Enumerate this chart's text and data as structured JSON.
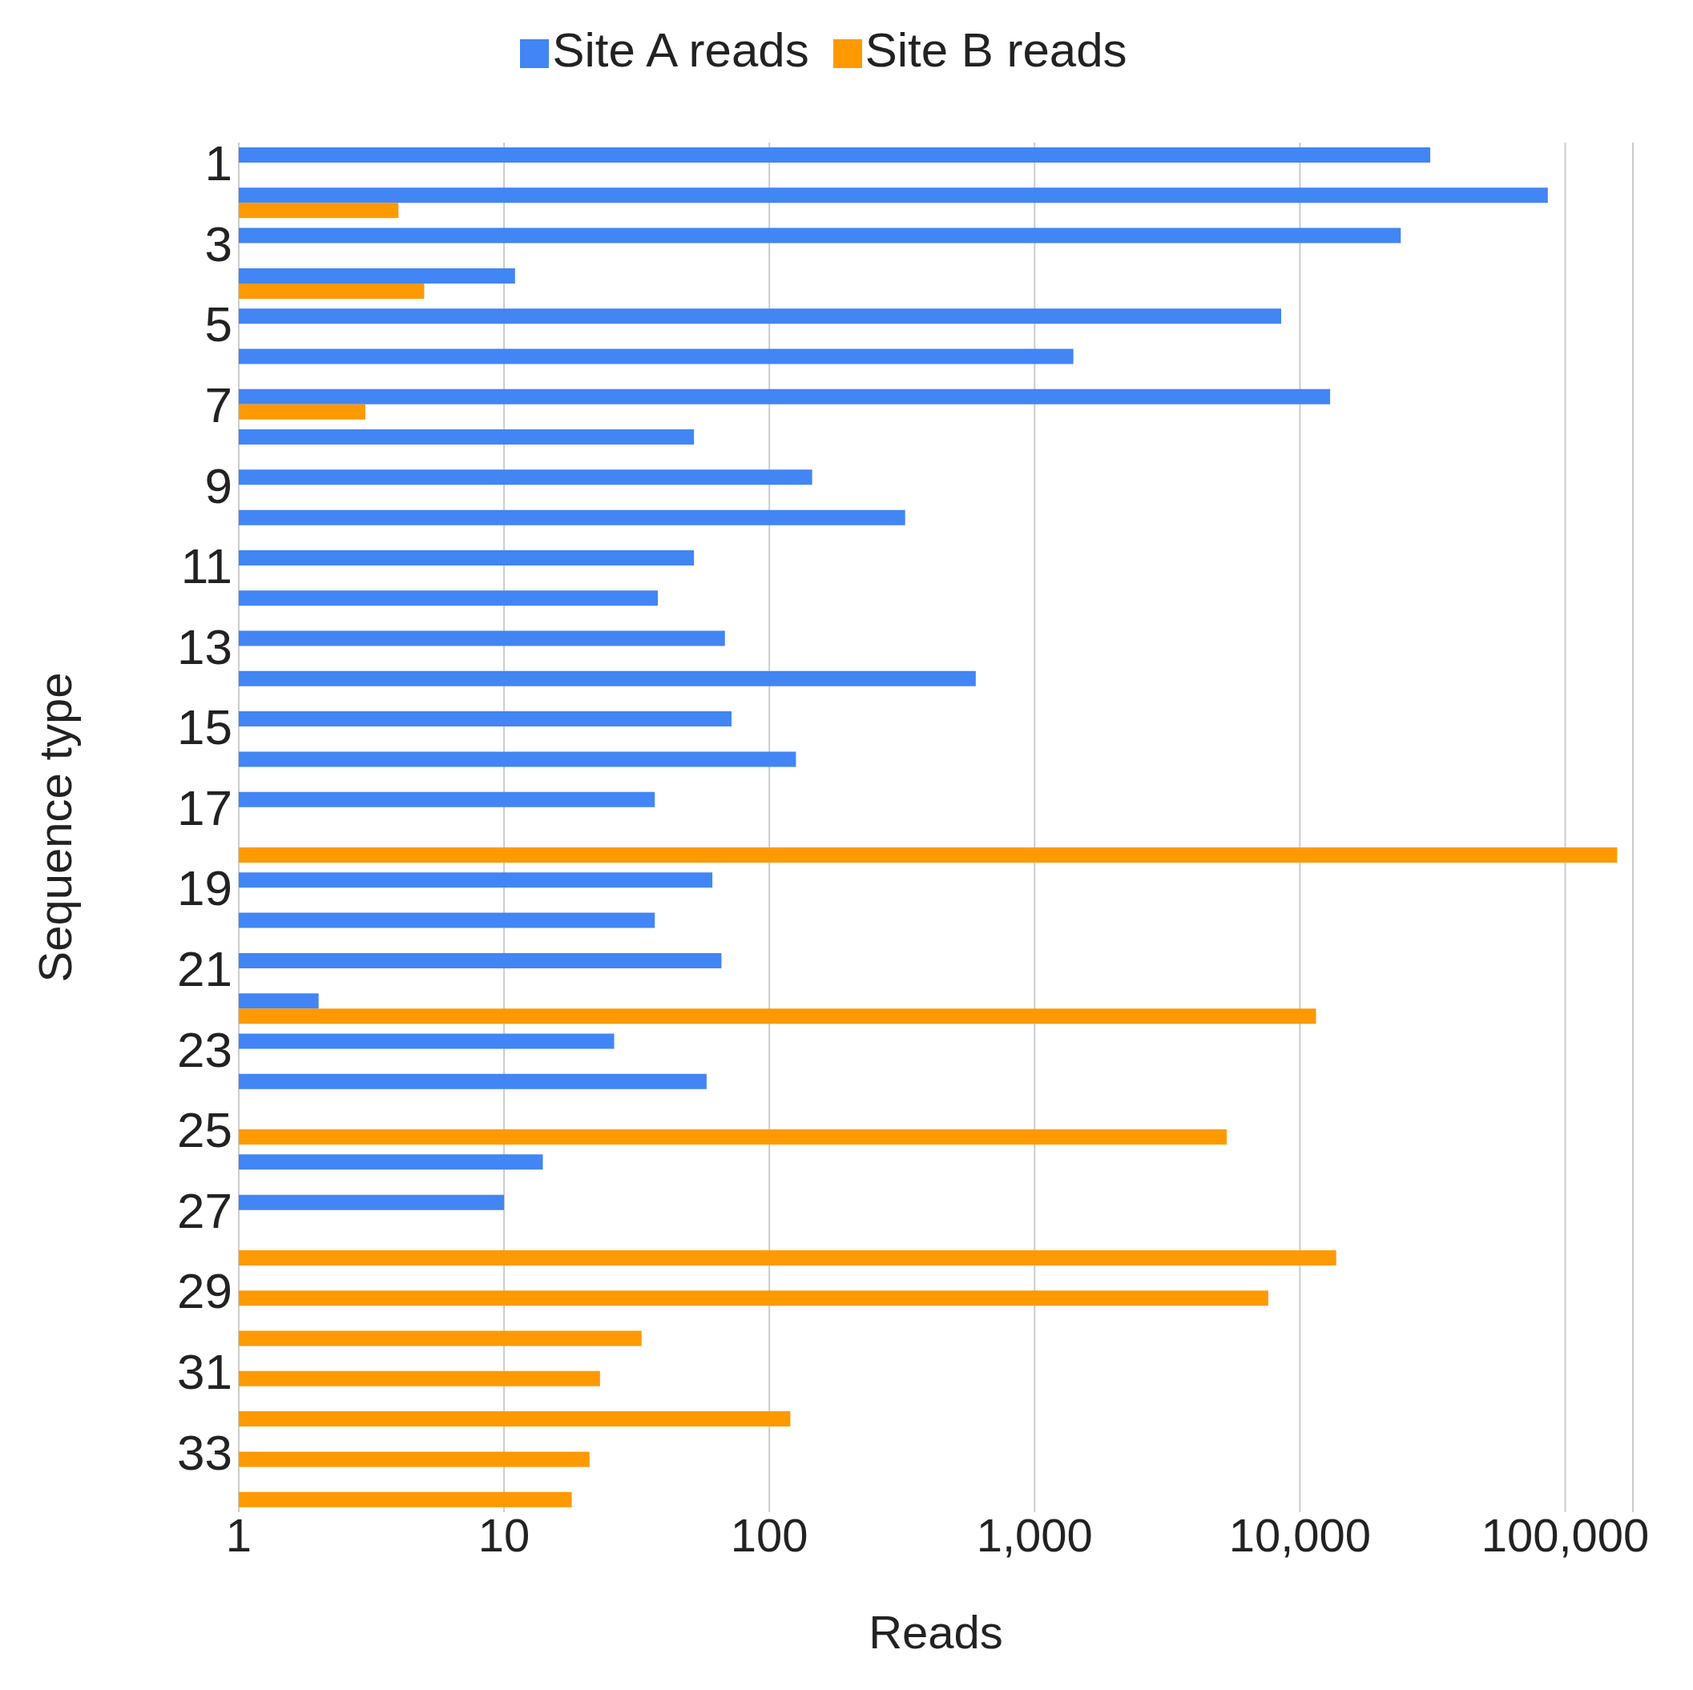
{
  "chart_data": {
    "type": "bar",
    "orientation": "horizontal",
    "xlabel": "Reads",
    "ylabel": "Sequence type",
    "categories": [
      "1",
      null,
      "3",
      null,
      "5",
      null,
      "7",
      null,
      "9",
      null,
      "11",
      null,
      "13",
      null,
      "15",
      null,
      "17",
      null,
      "19",
      null,
      "21",
      null,
      "23",
      null,
      "25",
      null,
      "27",
      null,
      "29",
      null,
      "31",
      null,
      "33",
      null
    ],
    "series": [
      {
        "name": "Site A reads",
        "color": "#4285f4",
        "values": [
          31000,
          86000,
          24000,
          11,
          8500,
          1400,
          13000,
          52,
          145,
          325,
          52,
          38,
          68,
          600,
          72,
          126,
          37,
          null,
          61,
          37,
          66,
          2,
          26,
          58,
          null,
          14,
          10,
          null,
          null,
          null,
          null,
          null,
          null,
          null
        ]
      },
      {
        "name": "Site B reads",
        "color": "#ff9900",
        "values": [
          null,
          4,
          null,
          5,
          null,
          null,
          3,
          null,
          null,
          null,
          null,
          null,
          null,
          null,
          null,
          null,
          null,
          157000,
          null,
          null,
          null,
          11500,
          null,
          null,
          5300,
          null,
          null,
          13700,
          7600,
          33,
          23,
          120,
          21,
          18
        ]
      }
    ],
    "log": "x",
    "xlim": [
      1,
      180000
    ],
    "xticks": [
      1,
      10,
      100,
      {
        "value": 1000,
        "label": "1,000"
      },
      {
        "value": 10000,
        "label": "10,000"
      },
      {
        "value": 100000,
        "label": "100,000"
      }
    ],
    "grid": "x",
    "legend": "top"
  }
}
